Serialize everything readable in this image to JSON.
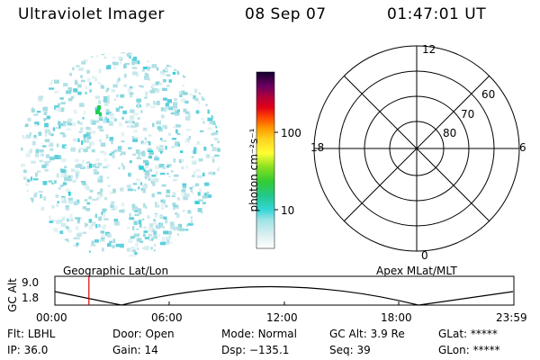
{
  "header": {
    "title": "Ultraviolet Imager",
    "date": "08 Sep 07",
    "time": "01:47:01 UT"
  },
  "colorbar": {
    "label": "photon cm⁻²s⁻¹",
    "ticks": [
      "100",
      "10"
    ]
  },
  "polar": {
    "hour_labels": {
      "top": "12",
      "left": "18",
      "right": "6",
      "bottom": "0"
    },
    "lat_labels": [
      "60",
      "70",
      "80"
    ]
  },
  "orbit": {
    "left_title": "Geographic Lat/Lon",
    "right_title": "Apex MLat/MLT",
    "axis_label": "GC Alt",
    "y_ticks": [
      "9.0",
      "1.8"
    ],
    "time_ticks": [
      "00:00",
      "06:00",
      "12:00",
      "18:00",
      "23:59"
    ],
    "current_time_marker_hours": 1.78
  },
  "info": {
    "row1": [
      {
        "label": "Flt:",
        "value": "LBHL"
      },
      {
        "label": "Door:",
        "value": "Open"
      },
      {
        "label": "Mode:",
        "value": "Normal"
      },
      {
        "label": "GC Alt:",
        "value": "3.9 Re"
      },
      {
        "label": "GLat:",
        "value": "*****"
      }
    ],
    "row2": [
      {
        "label": "IP:",
        "value": "36.0"
      },
      {
        "label": "Gain:",
        "value": "14"
      },
      {
        "label": "Dsp:",
        "value": "−135.1"
      },
      {
        "label": "Seq:",
        "value": "39"
      },
      {
        "label": "GLon:",
        "value": "*****"
      }
    ]
  }
}
